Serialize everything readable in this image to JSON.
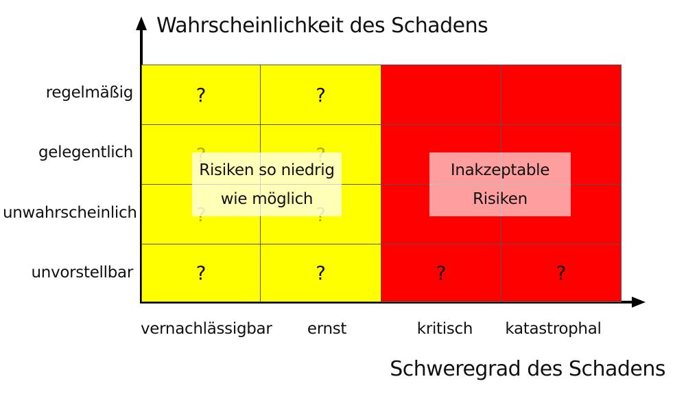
{
  "y_axis_title": "Wahrscheinlichkeit des Schadens",
  "x_axis_title": "Schweregrad des Schadens",
  "rows": [
    "regelmäßig",
    "gelegentlich",
    "unwahrscheinlich",
    "unvorstellbar"
  ],
  "columns": [
    "vernachlässigbar",
    "ernst",
    "kritisch",
    "katastrophal"
  ],
  "cell_mark": "?",
  "zones": {
    "low": {
      "label_line1": "Risiken so niedrig",
      "label_line2": "wie möglich",
      "color": "#ffff00"
    },
    "high": {
      "label_line1": "Inakzeptable",
      "label_line2": "Risiken",
      "color": "#ff0000"
    }
  },
  "colors": {
    "axis": "#000000",
    "grid": "#555555"
  }
}
